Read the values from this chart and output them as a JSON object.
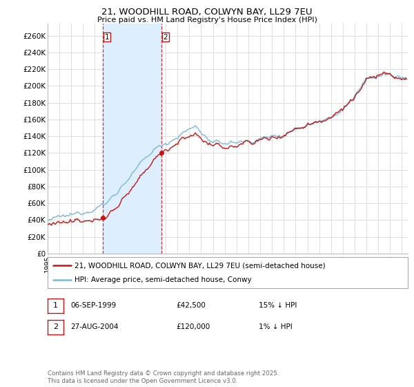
{
  "title_line1": "21, WOODHILL ROAD, COLWYN BAY, LL29 7EU",
  "title_line2": "Price paid vs. HM Land Registry's House Price Index (HPI)",
  "xlim_start": 1995.0,
  "xlim_end": 2025.5,
  "ylim_min": 0,
  "ylim_max": 275000,
  "yticks": [
    0,
    20000,
    40000,
    60000,
    80000,
    100000,
    120000,
    140000,
    160000,
    180000,
    200000,
    220000,
    240000,
    260000
  ],
  "ytick_labels": [
    "£0",
    "£20K",
    "£40K",
    "£60K",
    "£80K",
    "£100K",
    "£120K",
    "£140K",
    "£160K",
    "£180K",
    "£200K",
    "£220K",
    "£240K",
    "£260K"
  ],
  "hpi_color": "#7ab8d9",
  "price_color": "#cc1111",
  "marker_color": "#cc1111",
  "vline_color": "#cc1111",
  "sale1_x": 1999.68,
  "sale1_y": 42500,
  "sale1_label": "1",
  "sale2_x": 2004.65,
  "sale2_y": 120000,
  "sale2_label": "2",
  "shade_color": "#ddeeff",
  "legend_line1": "21, WOODHILL ROAD, COLWYN BAY, LL29 7EU (semi-detached house)",
  "legend_line2": "HPI: Average price, semi-detached house, Conwy",
  "table_row1": [
    "1",
    "06-SEP-1999",
    "£42,500",
    "15% ↓ HPI"
  ],
  "table_row2": [
    "2",
    "27-AUG-2004",
    "£120,000",
    "1% ↓ HPI"
  ],
  "footnote": "Contains HM Land Registry data © Crown copyright and database right 2025.\nThis data is licensed under the Open Government Licence v3.0.",
  "bg_color": "#ffffff",
  "grid_color": "#dddddd"
}
